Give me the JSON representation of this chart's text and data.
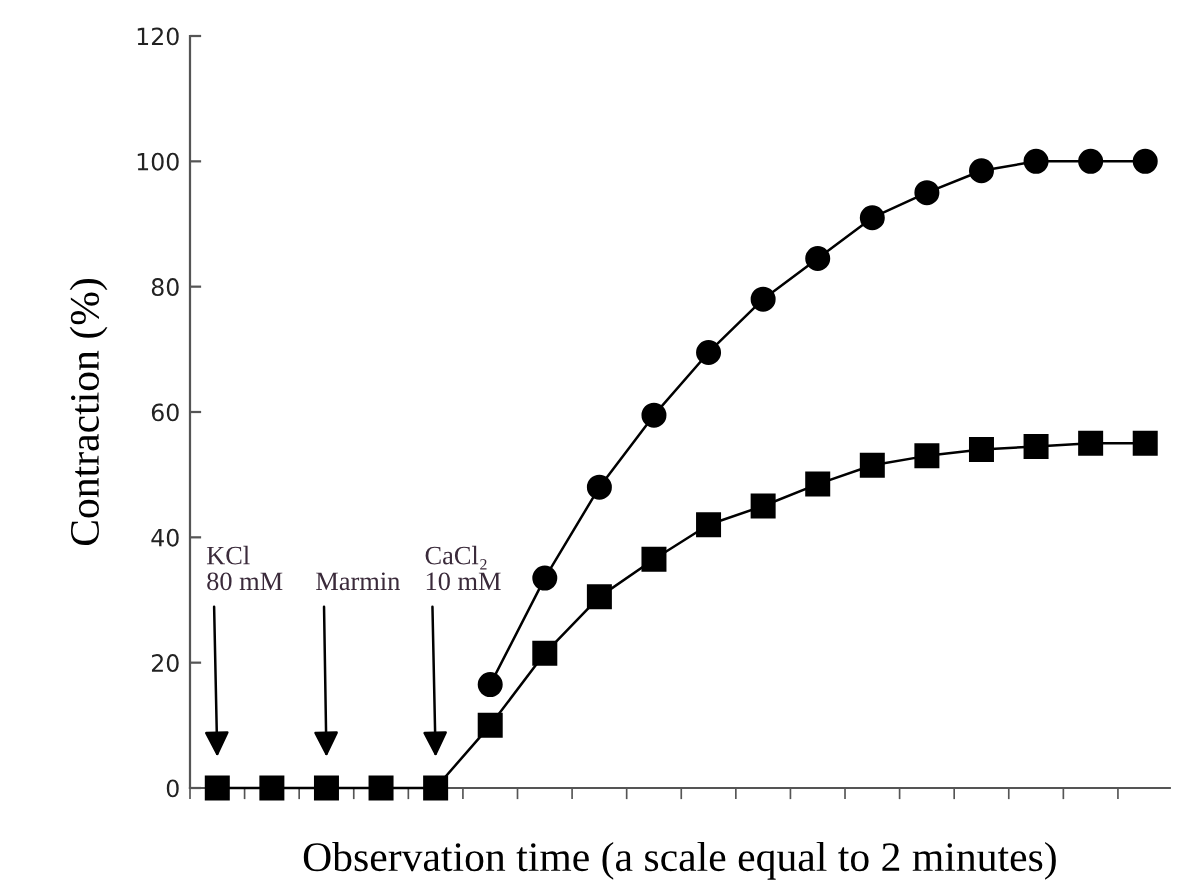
{
  "chart_data": {
    "type": "line",
    "xlabel": "Observation time (a scale equal to 2 minutes)",
    "ylabel": "Contraction (%)",
    "categories": [
      null,
      null,
      null,
      null,
      null,
      null,
      null,
      null,
      null,
      null,
      null,
      null,
      null,
      null,
      null,
      null,
      null,
      null
    ],
    "ylim": [
      0,
      120
    ],
    "yticks": [
      0,
      20,
      40,
      60,
      80,
      100,
      120
    ],
    "line_style": "solid",
    "series": [
      {
        "color": "#000000",
        "marker": "circle",
        "values": [
          null,
          null,
          null,
          null,
          null,
          16.5,
          33.5,
          48,
          59.5,
          69.5,
          78,
          84.5,
          91,
          95,
          98.5,
          100,
          100,
          100
        ]
      },
      {
        "color": "#000000",
        "marker": "square",
        "values": [
          0,
          0,
          0,
          0,
          0,
          10,
          21.5,
          30.5,
          36.5,
          42,
          45,
          48.5,
          51.5,
          53,
          54,
          54.5,
          55,
          55
        ]
      }
    ],
    "annotations": [
      "KCl\n80 mM",
      "Marmin",
      "CaCl₂\n10 mM"
    ]
  }
}
